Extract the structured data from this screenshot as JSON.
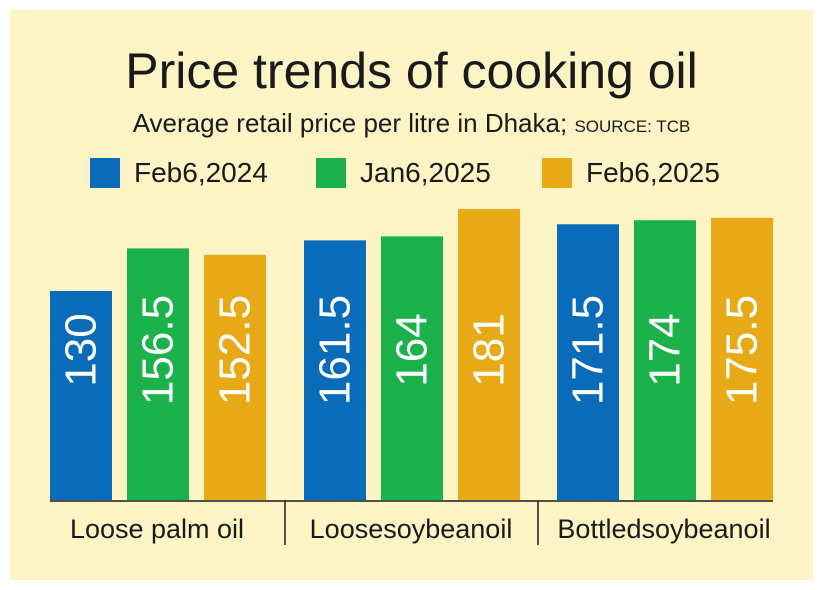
{
  "title": "Price trends of cooking oil",
  "subtitle": "Average retail price per litre in Dhaka;",
  "source": "SOURCE: TCB",
  "colors": {
    "background": "#fcf4c4",
    "feb2024": "#0a6cb8",
    "jan2025": "#1cb24b",
    "feb2025": "#e8a916"
  },
  "chart_data": {
    "type": "bar",
    "title": "Price trends of cooking oil",
    "subtitle": "Average retail price per litre in Dhaka; SOURCE: TCB",
    "categories": [
      "Loose palm oil",
      "Loosesoybeanoil",
      "Bottledsoybeanoil"
    ],
    "series": [
      {
        "name": "Feb6,2024",
        "color": "#0a6cb8",
        "values": [
          130,
          161.5,
          171.5
        ],
        "labels": [
          "130",
          "161.5",
          "171.5"
        ]
      },
      {
        "name": "Jan6,2025",
        "color": "#1cb24b",
        "values": [
          156.5,
          164,
          174
        ],
        "labels": [
          "156.5",
          "164",
          "174"
        ]
      },
      {
        "name": "Feb6,2025",
        "color": "#e8a916",
        "values": [
          152.5,
          181,
          175.5
        ],
        "labels": [
          "152.5",
          "181",
          "175.5"
        ]
      }
    ],
    "legend": "top",
    "grid": false,
    "xlabel": "",
    "ylabel": ""
  }
}
